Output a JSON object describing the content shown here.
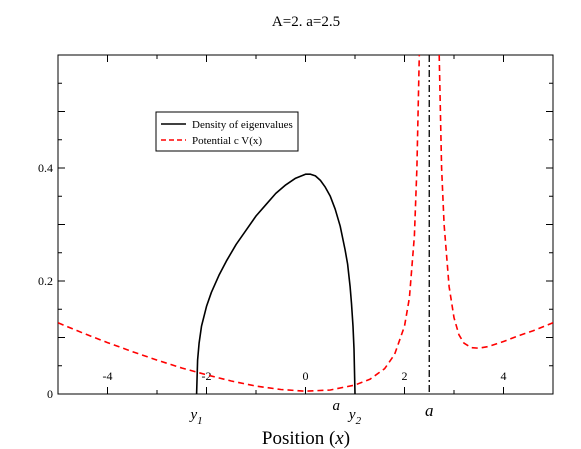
{
  "chart_data": {
    "type": "line",
    "title": "A=2. a=2.5",
    "xlabel": "Position (x)",
    "xlabel_parts": {
      "prefix": "Position (",
      "var": "x",
      "suffix": ")"
    },
    "ylabel": "",
    "xlim": [
      -5,
      5
    ],
    "ylim": [
      0,
      0.6
    ],
    "x_ticks": [
      -4,
      -2,
      0,
      2,
      4
    ],
    "y_ticks": [
      0,
      0.2,
      0.4
    ],
    "x_tick_labels": [
      "-4",
      "-2",
      "0",
      "2",
      "4"
    ],
    "y_tick_labels": [
      "0",
      "0.2",
      "0.4"
    ],
    "grid": false,
    "legend_position": "top-left",
    "legend": [
      {
        "label": "Density of eigenvalues",
        "style": "solid",
        "color": "#000000"
      },
      {
        "label": "Potential  c V(x)",
        "style": "dashed",
        "color": "#ff0000"
      }
    ],
    "annotations": {
      "y1": {
        "label": "y",
        "subscript": "1",
        "x": -2.2
      },
      "y2": {
        "label": "y",
        "subscript": "2",
        "x": 1.0
      },
      "a_small": {
        "label": "a",
        "x": 0.62
      },
      "a_big": {
        "label": "a",
        "x": 2.5
      }
    },
    "vertical_line": {
      "x": 2.5,
      "style": "dash-dot",
      "color": "#000000"
    },
    "series": [
      {
        "name": "Density of eigenvalues",
        "color": "#000000",
        "style": "solid",
        "x": [
          -2.2,
          -2.18,
          -2.15,
          -2.1,
          -2.0,
          -1.9,
          -1.75,
          -1.6,
          -1.4,
          -1.2,
          -1.0,
          -0.8,
          -0.6,
          -0.4,
          -0.2,
          0.0,
          0.1,
          0.2,
          0.3,
          0.4,
          0.5,
          0.6,
          0.7,
          0.8,
          0.85,
          0.9,
          0.93,
          0.96,
          0.98,
          1.0
        ],
        "y": [
          0,
          0.06,
          0.09,
          0.12,
          0.155,
          0.18,
          0.21,
          0.235,
          0.265,
          0.29,
          0.315,
          0.335,
          0.355,
          0.37,
          0.382,
          0.389,
          0.389,
          0.386,
          0.378,
          0.366,
          0.35,
          0.327,
          0.297,
          0.255,
          0.23,
          0.19,
          0.16,
          0.12,
          0.08,
          0
        ]
      },
      {
        "name": "Potential  c V(x)",
        "color": "#ff0000",
        "style": "dashed",
        "x": [
          -5.0,
          -4.5,
          -4.0,
          -3.5,
          -3.0,
          -2.5,
          -2.0,
          -1.5,
          -1.0,
          -0.5,
          0.0,
          0.5,
          1.0,
          1.3,
          1.6,
          1.8,
          2.0,
          2.1,
          2.2,
          2.25,
          2.3
        ],
        "y": [
          0.126,
          0.108,
          0.091,
          0.075,
          0.06,
          0.046,
          0.034,
          0.023,
          0.014,
          0.008,
          0.005,
          0.007,
          0.016,
          0.026,
          0.045,
          0.07,
          0.12,
          0.17,
          0.28,
          0.4,
          0.6
        ]
      },
      {
        "name": "Potential  c V(x)",
        "color": "#ff0000",
        "style": "dashed",
        "x": [
          2.7,
          2.75,
          2.8,
          2.9,
          3.0,
          3.1,
          3.2,
          3.35,
          3.5,
          3.7,
          4.0,
          4.3,
          4.6,
          5.0
        ],
        "y": [
          0.6,
          0.4,
          0.3,
          0.19,
          0.135,
          0.105,
          0.09,
          0.082,
          0.081,
          0.084,
          0.093,
          0.103,
          0.112,
          0.126
        ]
      }
    ]
  }
}
